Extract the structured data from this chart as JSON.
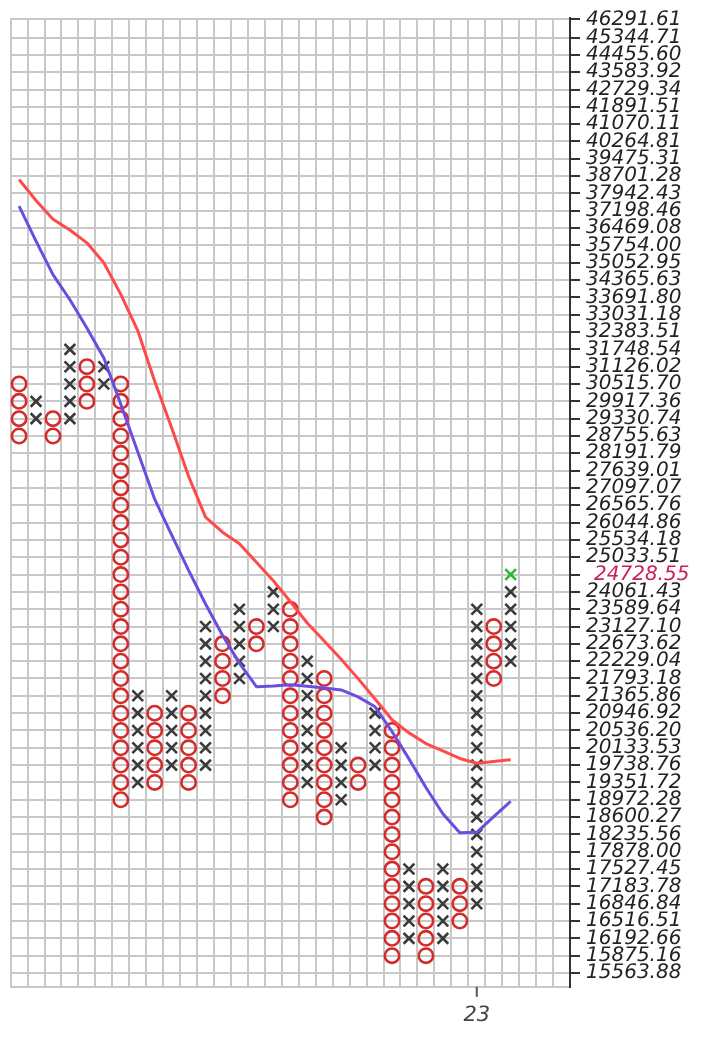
{
  "chart_data": {
    "type": "scatter",
    "log": "y",
    "grid": true,
    "legend": false,
    "categories": [
      null,
      null,
      null,
      null,
      null,
      null,
      null,
      null,
      null,
      null,
      null,
      null,
      null,
      null,
      null,
      null,
      null,
      null,
      null,
      null,
      null,
      null,
      null,
      null,
      null,
      null,
      null,
      "23",
      null,
      null,
      null,
      null,
      null
    ],
    "ylim": [
      15320,
      46370
    ],
    "yticks": [
      {
        "value": 46291.61,
        "label": "46291.61"
      },
      {
        "value": 45344.71,
        "label": "45344.71"
      },
      {
        "value": 44455.6,
        "label": "44455.60"
      },
      {
        "value": 43583.92,
        "label": "43583.92"
      },
      {
        "value": 42729.34,
        "label": "42729.34"
      },
      {
        "value": 41891.51,
        "label": "41891.51"
      },
      {
        "value": 41070.11,
        "label": "41070.11"
      },
      {
        "value": 40264.81,
        "label": "40264.81"
      },
      {
        "value": 39475.31,
        "label": "39475.31"
      },
      {
        "value": 38701.28,
        "label": "38701.28"
      },
      {
        "value": 37942.43,
        "label": "37942.43"
      },
      {
        "value": 37198.46,
        "label": "37198.46"
      },
      {
        "value": 36469.08,
        "label": "36469.08"
      },
      {
        "value": 35754,
        "label": "35754.00"
      },
      {
        "value": 35052.95,
        "label": "35052.95"
      },
      {
        "value": 34365.63,
        "label": "34365.63"
      },
      {
        "value": 33691.8,
        "label": "33691.80"
      },
      {
        "value": 33031.18,
        "label": "33031.18"
      },
      {
        "value": 32383.51,
        "label": "32383.51"
      },
      {
        "value": 31748.54,
        "label": "31748.54"
      },
      {
        "value": 31126.02,
        "label": "31126.02"
      },
      {
        "value": 30515.7,
        "label": "30515.70"
      },
      {
        "value": 29917.36,
        "label": "29917.36"
      },
      {
        "value": 29330.74,
        "label": "29330.74"
      },
      {
        "value": 28755.63,
        "label": "28755.63"
      },
      {
        "value": 28191.79,
        "label": "28191.79"
      },
      {
        "value": 27639.01,
        "label": "27639.01"
      },
      {
        "value": 27097.07,
        "label": "27097.07"
      },
      {
        "value": 26565.76,
        "label": "26565.76"
      },
      {
        "value": 26044.86,
        "label": "26044.86"
      },
      {
        "value": 25534.18,
        "label": "25534.18"
      },
      {
        "value": 25033.51,
        "label": "25033.51"
      },
      {
        "value": 24542.66,
        "label": null
      },
      {
        "value": 24061.43,
        "label": "24061.43"
      },
      {
        "value": 23589.64,
        "label": "23589.64"
      },
      {
        "value": 23127.1,
        "label": "23127.10"
      },
      {
        "value": 22673.62,
        "label": "22673.62"
      },
      {
        "value": 22229.04,
        "label": "22229.04"
      },
      {
        "value": 21793.18,
        "label": "21793.18"
      },
      {
        "value": 21365.86,
        "label": "21365.86"
      },
      {
        "value": 20946.92,
        "label": "20946.92"
      },
      {
        "value": 20536.2,
        "label": "20536.20"
      },
      {
        "value": 20133.53,
        "label": "20133.53"
      },
      {
        "value": 19738.76,
        "label": "19738.76"
      },
      {
        "value": 19351.72,
        "label": "19351.72"
      },
      {
        "value": 18972.28,
        "label": "18972.28"
      },
      {
        "value": 18600.27,
        "label": "18600.27"
      },
      {
        "value": 18235.56,
        "label": "18235.56"
      },
      {
        "value": 17878,
        "label": "17878.00"
      },
      {
        "value": 17527.45,
        "label": "17527.45"
      },
      {
        "value": 17183.78,
        "label": "17183.78"
      },
      {
        "value": 16846.84,
        "label": "16846.84"
      },
      {
        "value": 16516.51,
        "label": "16516.51"
      },
      {
        "value": 16192.66,
        "label": "16192.66"
      },
      {
        "value": 15875.16,
        "label": "15875.16"
      },
      {
        "value": 15563.88,
        "label": "15563.88"
      }
    ],
    "annotations": [
      "24728.55"
    ],
    "series": [
      {
        "type": "line",
        "color": "#ff4a4a",
        "values": [
          38550,
          37640,
          36840,
          36390,
          35860,
          35050,
          33810,
          32440,
          30610,
          29030,
          27460,
          26210,
          25760,
          25420,
          24890,
          24370,
          23800,
          23220,
          22750,
          22280,
          21790,
          21290,
          20790,
          20480,
          20230,
          20060,
          19890,
          19780,
          19820,
          19860,
          null,
          null,
          null
        ]
      },
      {
        "type": "line",
        "color": "#6a4ee0",
        "values": [
          37400,
          35930,
          34580,
          33600,
          32530,
          31440,
          29820,
          28240,
          26750,
          25680,
          24660,
          23730,
          22900,
          22180,
          21590,
          21610,
          21640,
          21600,
          21560,
          21510,
          21340,
          21100,
          20510,
          19880,
          19240,
          18670,
          18270,
          18280,
          18610,
          18940,
          null,
          null,
          null
        ]
      },
      {
        "marker": "cross",
        "color": "#3a3a3a",
        "values": [
          null,
          29917.36,
          null,
          31748.54,
          null,
          31126.02,
          null,
          21365.86,
          null,
          21365.86,
          null,
          23127.1,
          null,
          23589.64,
          null,
          24061.43,
          null,
          22229.04,
          null,
          20133.53,
          null,
          20946.92,
          null,
          17527.45,
          null,
          17527.45,
          null,
          23589.64,
          null,
          24061.43,
          null,
          null,
          null
        ]
      },
      {
        "marker": "cross",
        "color": "#3a3a3a",
        "values": [
          null,
          29330.74,
          null,
          31126.02,
          null,
          30515.7,
          null,
          20946.92,
          null,
          20946.92,
          null,
          22673.62,
          null,
          23127.1,
          null,
          23589.64,
          null,
          21793.18,
          null,
          19738.76,
          null,
          20536.2,
          null,
          17183.78,
          null,
          17183.78,
          null,
          23127.1,
          null,
          23589.64,
          null,
          null,
          null
        ]
      },
      {
        "marker": "cross",
        "color": "#3a3a3a",
        "values": [
          null,
          null,
          null,
          30515.7,
          null,
          null,
          null,
          20536.2,
          null,
          20536.2,
          null,
          22229.04,
          null,
          22673.62,
          null,
          23127.1,
          null,
          21365.86,
          null,
          19351.72,
          null,
          20133.53,
          null,
          16846.84,
          null,
          16846.84,
          null,
          22673.62,
          null,
          23127.1,
          null,
          null,
          null
        ]
      },
      {
        "marker": "cross",
        "color": "#3a3a3a",
        "values": [
          null,
          null,
          null,
          29917.36,
          null,
          null,
          null,
          20133.53,
          null,
          20133.53,
          null,
          21793.18,
          null,
          22229.04,
          null,
          null,
          null,
          20946.92,
          null,
          18972.28,
          null,
          19738.76,
          null,
          16516.51,
          null,
          16516.51,
          null,
          22229.04,
          null,
          22673.62,
          null,
          null,
          null
        ]
      },
      {
        "marker": "cross",
        "color": "#3a3a3a",
        "values": [
          null,
          null,
          null,
          29330.74,
          null,
          null,
          null,
          19738.76,
          null,
          19738.76,
          null,
          21365.86,
          null,
          21793.18,
          null,
          null,
          null,
          20536.2,
          null,
          null,
          null,
          null,
          null,
          16192.66,
          null,
          16192.66,
          null,
          21793.18,
          null,
          22229.04,
          null,
          null,
          null
        ]
      },
      {
        "marker": "cross",
        "color": "#3a3a3a",
        "values": [
          null,
          null,
          null,
          null,
          null,
          null,
          null,
          19351.72,
          null,
          null,
          null,
          20946.92,
          null,
          null,
          null,
          null,
          null,
          20133.53,
          null,
          null,
          null,
          null,
          null,
          null,
          null,
          null,
          null,
          21365.86,
          null,
          null,
          null,
          null,
          null
        ]
      },
      {
        "marker": "cross",
        "color": "#3a3a3a",
        "values": [
          null,
          null,
          null,
          null,
          null,
          null,
          null,
          null,
          null,
          null,
          null,
          20536.2,
          null,
          null,
          null,
          null,
          null,
          19738.76,
          null,
          null,
          null,
          null,
          null,
          null,
          null,
          null,
          null,
          20946.92,
          null,
          null,
          null,
          null,
          null
        ]
      },
      {
        "marker": "cross",
        "color": "#3a3a3a",
        "values": [
          null,
          null,
          null,
          null,
          null,
          null,
          null,
          null,
          null,
          null,
          null,
          20133.53,
          null,
          null,
          null,
          null,
          null,
          19351.72,
          null,
          null,
          null,
          null,
          null,
          null,
          null,
          null,
          null,
          20536.2,
          null,
          null,
          null,
          null,
          null
        ]
      },
      {
        "marker": "cross",
        "color": "#3a3a3a",
        "values": [
          null,
          null,
          null,
          null,
          null,
          null,
          null,
          null,
          null,
          null,
          null,
          19738.76,
          null,
          null,
          null,
          null,
          null,
          null,
          null,
          null,
          null,
          null,
          null,
          null,
          null,
          null,
          null,
          20133.53,
          null,
          null,
          null,
          null,
          null
        ]
      },
      {
        "marker": "cross",
        "color": "#3a3a3a",
        "values": [
          null,
          null,
          null,
          null,
          null,
          null,
          null,
          null,
          null,
          null,
          null,
          null,
          null,
          null,
          null,
          null,
          null,
          null,
          null,
          null,
          null,
          null,
          null,
          null,
          null,
          null,
          null,
          19738.76,
          null,
          null,
          null,
          null,
          null
        ]
      },
      {
        "marker": "cross",
        "color": "#3a3a3a",
        "values": [
          null,
          null,
          null,
          null,
          null,
          null,
          null,
          null,
          null,
          null,
          null,
          null,
          null,
          null,
          null,
          null,
          null,
          null,
          null,
          null,
          null,
          null,
          null,
          null,
          null,
          null,
          null,
          19351.72,
          null,
          null,
          null,
          null,
          null
        ]
      },
      {
        "marker": "cross",
        "color": "#3a3a3a",
        "values": [
          null,
          null,
          null,
          null,
          null,
          null,
          null,
          null,
          null,
          null,
          null,
          null,
          null,
          null,
          null,
          null,
          null,
          null,
          null,
          null,
          null,
          null,
          null,
          null,
          null,
          null,
          null,
          18972.28,
          null,
          null,
          null,
          null,
          null
        ]
      },
      {
        "marker": "cross",
        "color": "#3a3a3a",
        "values": [
          null,
          null,
          null,
          null,
          null,
          null,
          null,
          null,
          null,
          null,
          null,
          null,
          null,
          null,
          null,
          null,
          null,
          null,
          null,
          null,
          null,
          null,
          null,
          null,
          null,
          null,
          null,
          18600.27,
          null,
          null,
          null,
          null,
          null
        ]
      },
      {
        "marker": "cross",
        "color": "#3a3a3a",
        "values": [
          null,
          null,
          null,
          null,
          null,
          null,
          null,
          null,
          null,
          null,
          null,
          null,
          null,
          null,
          null,
          null,
          null,
          null,
          null,
          null,
          null,
          null,
          null,
          null,
          null,
          null,
          null,
          18235.56,
          null,
          null,
          null,
          null,
          null
        ]
      },
      {
        "marker": "cross",
        "color": "#3a3a3a",
        "values": [
          null,
          null,
          null,
          null,
          null,
          null,
          null,
          null,
          null,
          null,
          null,
          null,
          null,
          null,
          null,
          null,
          null,
          null,
          null,
          null,
          null,
          null,
          null,
          null,
          null,
          null,
          null,
          17878,
          null,
          null,
          null,
          null,
          null
        ]
      },
      {
        "marker": "cross",
        "color": "#3a3a3a",
        "values": [
          null,
          null,
          null,
          null,
          null,
          null,
          null,
          null,
          null,
          null,
          null,
          null,
          null,
          null,
          null,
          null,
          null,
          null,
          null,
          null,
          null,
          null,
          null,
          null,
          null,
          null,
          null,
          17527.45,
          null,
          null,
          null,
          null,
          null
        ]
      },
      {
        "marker": "cross",
        "color": "#3a3a3a",
        "values": [
          null,
          null,
          null,
          null,
          null,
          null,
          null,
          null,
          null,
          null,
          null,
          null,
          null,
          null,
          null,
          null,
          null,
          null,
          null,
          null,
          null,
          null,
          null,
          null,
          null,
          null,
          null,
          17183.78,
          null,
          null,
          null,
          null,
          null
        ]
      },
      {
        "marker": "cross",
        "color": "#3a3a3a",
        "values": [
          null,
          null,
          null,
          null,
          null,
          null,
          null,
          null,
          null,
          null,
          null,
          null,
          null,
          null,
          null,
          null,
          null,
          null,
          null,
          null,
          null,
          null,
          null,
          null,
          null,
          null,
          null,
          16846.84,
          null,
          null,
          null,
          null,
          null
        ]
      },
      {
        "marker": "cross",
        "color": "#2fb82f",
        "values": [
          null,
          null,
          null,
          null,
          null,
          null,
          null,
          null,
          null,
          null,
          null,
          null,
          null,
          null,
          null,
          null,
          null,
          null,
          null,
          null,
          null,
          null,
          null,
          null,
          null,
          null,
          null,
          null,
          null,
          24542.66,
          null,
          null,
          null
        ]
      },
      {
        "marker": "circle",
        "color": "#d42b2b",
        "values": [
          30515.7,
          null,
          29330.74,
          null,
          31126.02,
          null,
          30515.7,
          null,
          20946.92,
          null,
          20946.92,
          null,
          22673.62,
          null,
          23127.1,
          null,
          23589.64,
          null,
          21793.18,
          null,
          19738.76,
          null,
          20536.2,
          null,
          17183.78,
          null,
          17183.78,
          null,
          23127.1,
          null,
          null,
          null,
          null
        ]
      },
      {
        "marker": "circle",
        "color": "#d42b2b",
        "values": [
          29917.36,
          null,
          28755.63,
          null,
          30515.7,
          null,
          29917.36,
          null,
          20536.2,
          null,
          20536.2,
          null,
          22229.04,
          null,
          22673.62,
          null,
          23127.1,
          null,
          21365.86,
          null,
          19351.72,
          null,
          20133.53,
          null,
          16846.84,
          null,
          16846.84,
          null,
          22673.62,
          null,
          null,
          null,
          null
        ]
      },
      {
        "marker": "circle",
        "color": "#d42b2b",
        "values": [
          29330.74,
          null,
          null,
          null,
          29917.36,
          null,
          29330.74,
          null,
          20133.53,
          null,
          20133.53,
          null,
          21793.18,
          null,
          null,
          null,
          22673.62,
          null,
          20946.92,
          null,
          null,
          null,
          19738.76,
          null,
          16516.51,
          null,
          16516.51,
          null,
          22229.04,
          null,
          null,
          null,
          null
        ]
      },
      {
        "marker": "circle",
        "color": "#d42b2b",
        "values": [
          28755.63,
          null,
          null,
          null,
          null,
          null,
          28755.63,
          null,
          19738.76,
          null,
          19738.76,
          null,
          21365.86,
          null,
          null,
          null,
          22229.04,
          null,
          20536.2,
          null,
          null,
          null,
          19351.72,
          null,
          16192.66,
          null,
          null,
          null,
          21793.18,
          null,
          null,
          null,
          null
        ]
      },
      {
        "marker": "circle",
        "color": "#d42b2b",
        "values": [
          null,
          null,
          null,
          null,
          null,
          null,
          28191.79,
          null,
          19351.72,
          null,
          19351.72,
          null,
          null,
          null,
          null,
          null,
          21793.18,
          null,
          20133.53,
          null,
          null,
          null,
          18972.28,
          null,
          15875.16,
          null,
          null,
          null,
          null,
          null,
          null,
          null,
          null
        ]
      },
      {
        "marker": "circle",
        "color": "#d42b2b",
        "values": [
          null,
          null,
          null,
          null,
          null,
          null,
          27639.01,
          null,
          null,
          null,
          null,
          null,
          null,
          null,
          null,
          null,
          21365.86,
          null,
          19738.76,
          null,
          null,
          null,
          18600.27,
          null,
          null,
          null,
          null,
          null,
          null,
          null,
          null,
          null,
          null
        ]
      },
      {
        "marker": "circle",
        "color": "#d42b2b",
        "values": [
          null,
          null,
          null,
          null,
          null,
          null,
          27097.07,
          null,
          null,
          null,
          null,
          null,
          null,
          null,
          null,
          null,
          20946.92,
          null,
          19351.72,
          null,
          null,
          null,
          18235.56,
          null,
          null,
          null,
          null,
          null,
          null,
          null,
          null,
          null,
          null
        ]
      },
      {
        "marker": "circle",
        "color": "#d42b2b",
        "values": [
          null,
          null,
          null,
          null,
          null,
          null,
          26565.76,
          null,
          null,
          null,
          null,
          null,
          null,
          null,
          null,
          null,
          20536.2,
          null,
          18972.28,
          null,
          null,
          null,
          17878,
          null,
          null,
          null,
          null,
          null,
          null,
          null,
          null,
          null,
          null
        ]
      },
      {
        "marker": "circle",
        "color": "#d42b2b",
        "values": [
          null,
          null,
          null,
          null,
          null,
          null,
          26044.86,
          null,
          null,
          null,
          null,
          null,
          null,
          null,
          null,
          null,
          20133.53,
          null,
          18600.27,
          null,
          null,
          null,
          17527.45,
          null,
          null,
          null,
          null,
          null,
          null,
          null,
          null,
          null,
          null
        ]
      },
      {
        "marker": "circle",
        "color": "#d42b2b",
        "values": [
          null,
          null,
          null,
          null,
          null,
          null,
          25534.18,
          null,
          null,
          null,
          null,
          null,
          null,
          null,
          null,
          null,
          19738.76,
          null,
          null,
          null,
          null,
          null,
          17183.78,
          null,
          null,
          null,
          null,
          null,
          null,
          null,
          null,
          null,
          null
        ]
      },
      {
        "marker": "circle",
        "color": "#d42b2b",
        "values": [
          null,
          null,
          null,
          null,
          null,
          null,
          25033.51,
          null,
          null,
          null,
          null,
          null,
          null,
          null,
          null,
          null,
          19351.72,
          null,
          null,
          null,
          null,
          null,
          16846.84,
          null,
          null,
          null,
          null,
          null,
          null,
          null,
          null,
          null,
          null
        ]
      },
      {
        "marker": "circle",
        "color": "#d42b2b",
        "values": [
          null,
          null,
          null,
          null,
          null,
          null,
          24542.66,
          null,
          null,
          null,
          null,
          null,
          null,
          null,
          null,
          null,
          18972.28,
          null,
          null,
          null,
          null,
          null,
          16516.51,
          null,
          null,
          null,
          null,
          null,
          null,
          null,
          null,
          null,
          null
        ]
      },
      {
        "marker": "circle",
        "color": "#d42b2b",
        "values": [
          null,
          null,
          null,
          null,
          null,
          null,
          24061.43,
          null,
          null,
          null,
          null,
          null,
          null,
          null,
          null,
          null,
          null,
          null,
          null,
          null,
          null,
          null,
          16192.66,
          null,
          null,
          null,
          null,
          null,
          null,
          null,
          null,
          null,
          null
        ]
      },
      {
        "marker": "circle",
        "color": "#d42b2b",
        "values": [
          null,
          null,
          null,
          null,
          null,
          null,
          23589.64,
          null,
          null,
          null,
          null,
          null,
          null,
          null,
          null,
          null,
          null,
          null,
          null,
          null,
          null,
          null,
          15875.16,
          null,
          null,
          null,
          null,
          null,
          null,
          null,
          null,
          null,
          null
        ]
      },
      {
        "marker": "circle",
        "color": "#d42b2b",
        "values": [
          null,
          null,
          null,
          null,
          null,
          null,
          23127.1,
          null,
          null,
          null,
          null,
          null,
          null,
          null,
          null,
          null,
          null,
          null,
          null,
          null,
          null,
          null,
          null,
          null,
          null,
          null,
          null,
          null,
          null,
          null,
          null,
          null,
          null
        ]
      },
      {
        "marker": "circle",
        "color": "#d42b2b",
        "values": [
          null,
          null,
          null,
          null,
          null,
          null,
          22673.62,
          null,
          null,
          null,
          null,
          null,
          null,
          null,
          null,
          null,
          null,
          null,
          null,
          null,
          null,
          null,
          null,
          null,
          null,
          null,
          null,
          null,
          null,
          null,
          null,
          null,
          null
        ]
      },
      {
        "marker": "circle",
        "color": "#d42b2b",
        "values": [
          null,
          null,
          null,
          null,
          null,
          null,
          22229.04,
          null,
          null,
          null,
          null,
          null,
          null,
          null,
          null,
          null,
          null,
          null,
          null,
          null,
          null,
          null,
          null,
          null,
          null,
          null,
          null,
          null,
          null,
          null,
          null,
          null,
          null
        ]
      },
      {
        "marker": "circle",
        "color": "#d42b2b",
        "values": [
          null,
          null,
          null,
          null,
          null,
          null,
          21793.18,
          null,
          null,
          null,
          null,
          null,
          null,
          null,
          null,
          null,
          null,
          null,
          null,
          null,
          null,
          null,
          null,
          null,
          null,
          null,
          null,
          null,
          null,
          null,
          null,
          null,
          null
        ]
      },
      {
        "marker": "circle",
        "color": "#d42b2b",
        "values": [
          null,
          null,
          null,
          null,
          null,
          null,
          21365.86,
          null,
          null,
          null,
          null,
          null,
          null,
          null,
          null,
          null,
          null,
          null,
          null,
          null,
          null,
          null,
          null,
          null,
          null,
          null,
          null,
          null,
          null,
          null,
          null,
          null,
          null
        ]
      },
      {
        "marker": "circle",
        "color": "#d42b2b",
        "values": [
          null,
          null,
          null,
          null,
          null,
          null,
          20946.92,
          null,
          null,
          null,
          null,
          null,
          null,
          null,
          null,
          null,
          null,
          null,
          null,
          null,
          null,
          null,
          null,
          null,
          null,
          null,
          null,
          null,
          null,
          null,
          null,
          null,
          null
        ]
      },
      {
        "marker": "circle",
        "color": "#d42b2b",
        "values": [
          null,
          null,
          null,
          null,
          null,
          null,
          20536.2,
          null,
          null,
          null,
          null,
          null,
          null,
          null,
          null,
          null,
          null,
          null,
          null,
          null,
          null,
          null,
          null,
          null,
          null,
          null,
          null,
          null,
          null,
          null,
          null,
          null,
          null
        ]
      },
      {
        "marker": "circle",
        "color": "#d42b2b",
        "values": [
          null,
          null,
          null,
          null,
          null,
          null,
          20133.53,
          null,
          null,
          null,
          null,
          null,
          null,
          null,
          null,
          null,
          null,
          null,
          null,
          null,
          null,
          null,
          null,
          null,
          null,
          null,
          null,
          null,
          null,
          null,
          null,
          null,
          null
        ]
      },
      {
        "marker": "circle",
        "color": "#d42b2b",
        "values": [
          null,
          null,
          null,
          null,
          null,
          null,
          19738.76,
          null,
          null,
          null,
          null,
          null,
          null,
          null,
          null,
          null,
          null,
          null,
          null,
          null,
          null,
          null,
          null,
          null,
          null,
          null,
          null,
          null,
          null,
          null,
          null,
          null,
          null
        ]
      },
      {
        "marker": "circle",
        "color": "#d42b2b",
        "values": [
          null,
          null,
          null,
          null,
          null,
          null,
          19351.72,
          null,
          null,
          null,
          null,
          null,
          null,
          null,
          null,
          null,
          null,
          null,
          null,
          null,
          null,
          null,
          null,
          null,
          null,
          null,
          null,
          null,
          null,
          null,
          null,
          null,
          null
        ]
      },
      {
        "marker": "circle",
        "color": "#d42b2b",
        "values": [
          null,
          null,
          null,
          null,
          null,
          null,
          18972.28,
          null,
          null,
          null,
          null,
          null,
          null,
          null,
          null,
          null,
          null,
          null,
          null,
          null,
          null,
          null,
          null,
          null,
          null,
          null,
          null,
          null,
          null,
          null,
          null,
          null,
          null
        ]
      }
    ]
  }
}
